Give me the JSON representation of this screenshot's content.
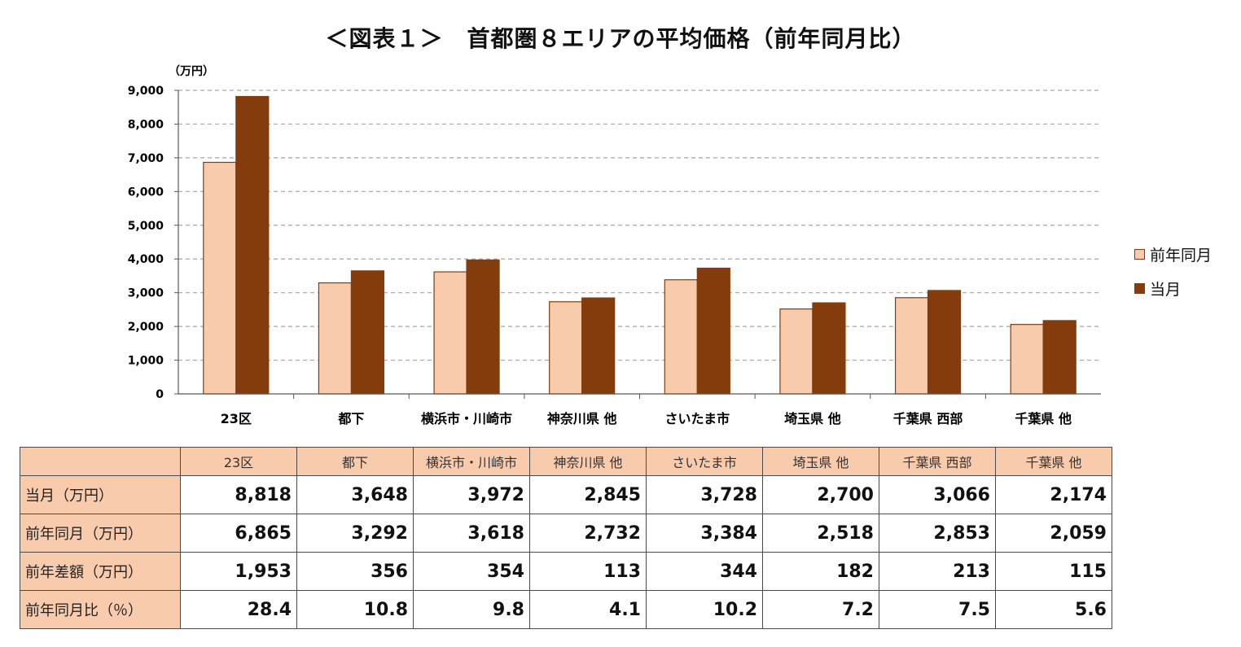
{
  "title": "＜図表１＞　首都圏８エリアの平均価格（前年同月比）",
  "unit_label": "（万円）",
  "colors": {
    "prev": "#f8cbad",
    "prev_stroke": "#843c0c",
    "curr": "#843c0c",
    "header_bg": "#f8cbad",
    "grid": "#a6a6a6"
  },
  "chart_data": {
    "type": "bar",
    "categories": [
      "23区",
      "都下",
      "横浜市・川崎市",
      "神奈川県 他",
      "さいたま市",
      "埼玉県 他",
      "千葉県 西部",
      "千葉県 他"
    ],
    "series": [
      {
        "name": "前年同月",
        "values": [
          6865,
          3292,
          3618,
          2732,
          3384,
          2518,
          2853,
          2059
        ]
      },
      {
        "name": "当月",
        "values": [
          8818,
          3648,
          3972,
          2845,
          3728,
          2700,
          3066,
          2174
        ]
      }
    ],
    "ylim": [
      0,
      9000
    ],
    "yticks": [
      "0",
      "1,000",
      "2,000",
      "3,000",
      "4,000",
      "5,000",
      "6,000",
      "7,000",
      "8,000",
      "9,000"
    ],
    "grid": true,
    "legend_position": "right"
  },
  "legend": [
    {
      "label": "前年同月"
    },
    {
      "label": "当月"
    }
  ],
  "table": {
    "header": [
      "23区",
      "都下",
      "横浜市・川崎市",
      "神奈川県 他",
      "さいたま市",
      "埼玉県 他",
      "千葉県 西部",
      "千葉県 他"
    ],
    "rows": [
      {
        "label": "当月（万円）",
        "values": [
          "8,818",
          "3,648",
          "3,972",
          "2,845",
          "3,728",
          "2,700",
          "3,066",
          "2,174"
        ]
      },
      {
        "label": "前年同月（万円）",
        "values": [
          "6,865",
          "3,292",
          "3,618",
          "2,732",
          "3,384",
          "2,518",
          "2,853",
          "2,059"
        ]
      },
      {
        "label": "前年差額（万円）",
        "values": [
          "1,953",
          "356",
          "354",
          "113",
          "344",
          "182",
          "213",
          "115"
        ]
      },
      {
        "label": "前年同月比（％）",
        "values": [
          "28.4",
          "10.8",
          "9.8",
          "4.1",
          "10.2",
          "7.2",
          "7.5",
          "5.6"
        ]
      }
    ]
  }
}
